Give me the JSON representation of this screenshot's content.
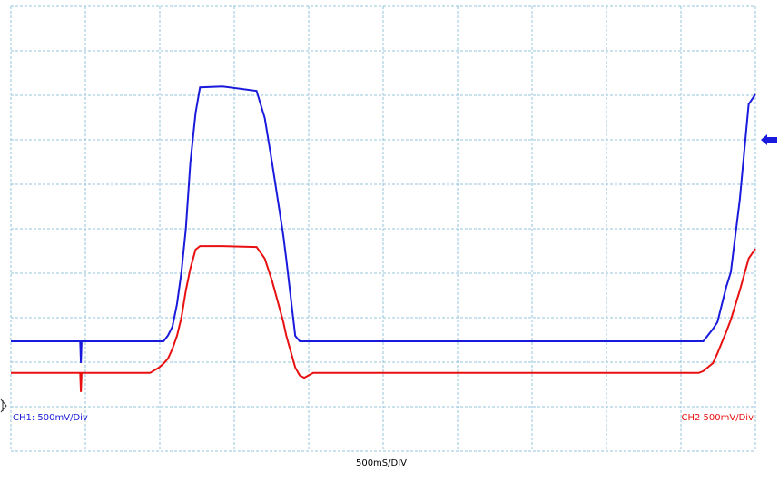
{
  "chart_data": {
    "type": "line",
    "x": [
      0,
      0.93,
      0.94,
      0.95,
      1.87,
      1.99,
      2.05,
      2.11,
      2.17,
      2.23,
      2.29,
      2.35,
      2.41,
      2.48,
      2.54,
      2.84,
      3.3,
      3.41,
      3.51,
      3.66,
      3.7,
      3.82,
      3.88,
      3.94,
      4.06,
      9.24,
      9.3,
      9.43,
      9.49,
      9.61,
      9.67,
      9.79,
      9.91,
      10
    ],
    "series": [
      {
        "name": "CH1: 500mV/Div",
        "color": "#1a1adc",
        "values": [
          2.47,
          2.47,
          1.98,
          2.47,
          2.47,
          2.47,
          2.47,
          2.6,
          2.8,
          3.3,
          4.02,
          5.0,
          6.47,
          7.6,
          8.18,
          8.2,
          8.1,
          7.49,
          6.47,
          4.84,
          4.3,
          2.59,
          2.47,
          2.47,
          2.47,
          2.47,
          2.47,
          2.75,
          2.9,
          3.7,
          4.02,
          5.65,
          7.8,
          8.02
        ]
      },
      {
        "name": "CH2 500mV/Div",
        "color": "#e81010",
        "values": [
          1.76,
          1.76,
          1.33,
          1.76,
          1.76,
          1.88,
          1.97,
          2.08,
          2.3,
          2.59,
          3.0,
          3.61,
          4.1,
          4.53,
          4.61,
          4.61,
          4.59,
          4.33,
          3.82,
          2.9,
          2.59,
          1.88,
          1.7,
          1.65,
          1.76,
          1.76,
          1.8,
          1.98,
          2.2,
          2.69,
          2.95,
          3.61,
          4.33,
          4.55
        ]
      }
    ],
    "x_label": "500mS/DIV",
    "xlim": [
      0,
      10
    ],
    "ylim": [
      0,
      10
    ],
    "grid": true
  }
}
